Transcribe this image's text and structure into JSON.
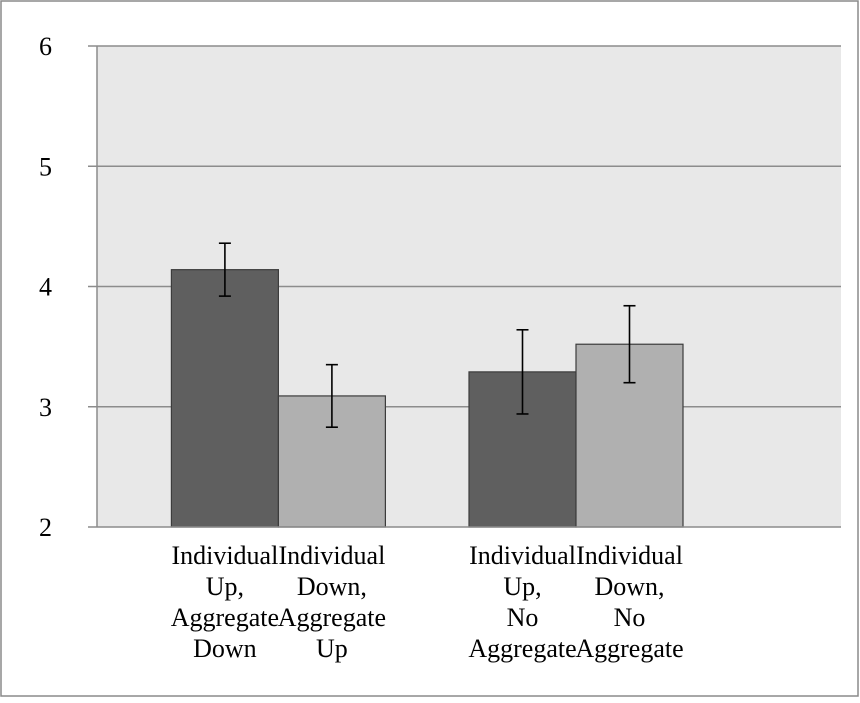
{
  "chart_data": {
    "type": "bar",
    "title": "",
    "xlabel": "",
    "ylabel": "",
    "ylim": [
      2,
      6
    ],
    "yticks": [
      2,
      3,
      4,
      5,
      6
    ],
    "grid": true,
    "legend": "none",
    "categories": [
      {
        "lines": [
          "Individual",
          "Up,",
          "Aggregate",
          "Down"
        ],
        "value": 4.14,
        "err_low": 3.92,
        "err_high": 4.36,
        "color": "#5f5f5f",
        "group": 0
      },
      {
        "lines": [
          "Individual",
          "Down,",
          "Aggregate",
          "Up"
        ],
        "value": 3.09,
        "err_low": 2.83,
        "err_high": 3.35,
        "color": "#b0b0b0",
        "group": 0
      },
      {
        "lines": [
          "Individual",
          "Up,",
          "No",
          "Aggregate"
        ],
        "value": 3.29,
        "err_low": 2.94,
        "err_high": 3.64,
        "color": "#5f5f5f",
        "group": 1
      },
      {
        "lines": [
          "Individual",
          "Down,",
          "No",
          "Aggregate"
        ],
        "value": 3.52,
        "err_low": 3.2,
        "err_high": 3.84,
        "color": "#b0b0b0",
        "group": 1
      }
    ],
    "plot_background": "#e8e8e8",
    "gridline_color": "#8c8c8c"
  }
}
